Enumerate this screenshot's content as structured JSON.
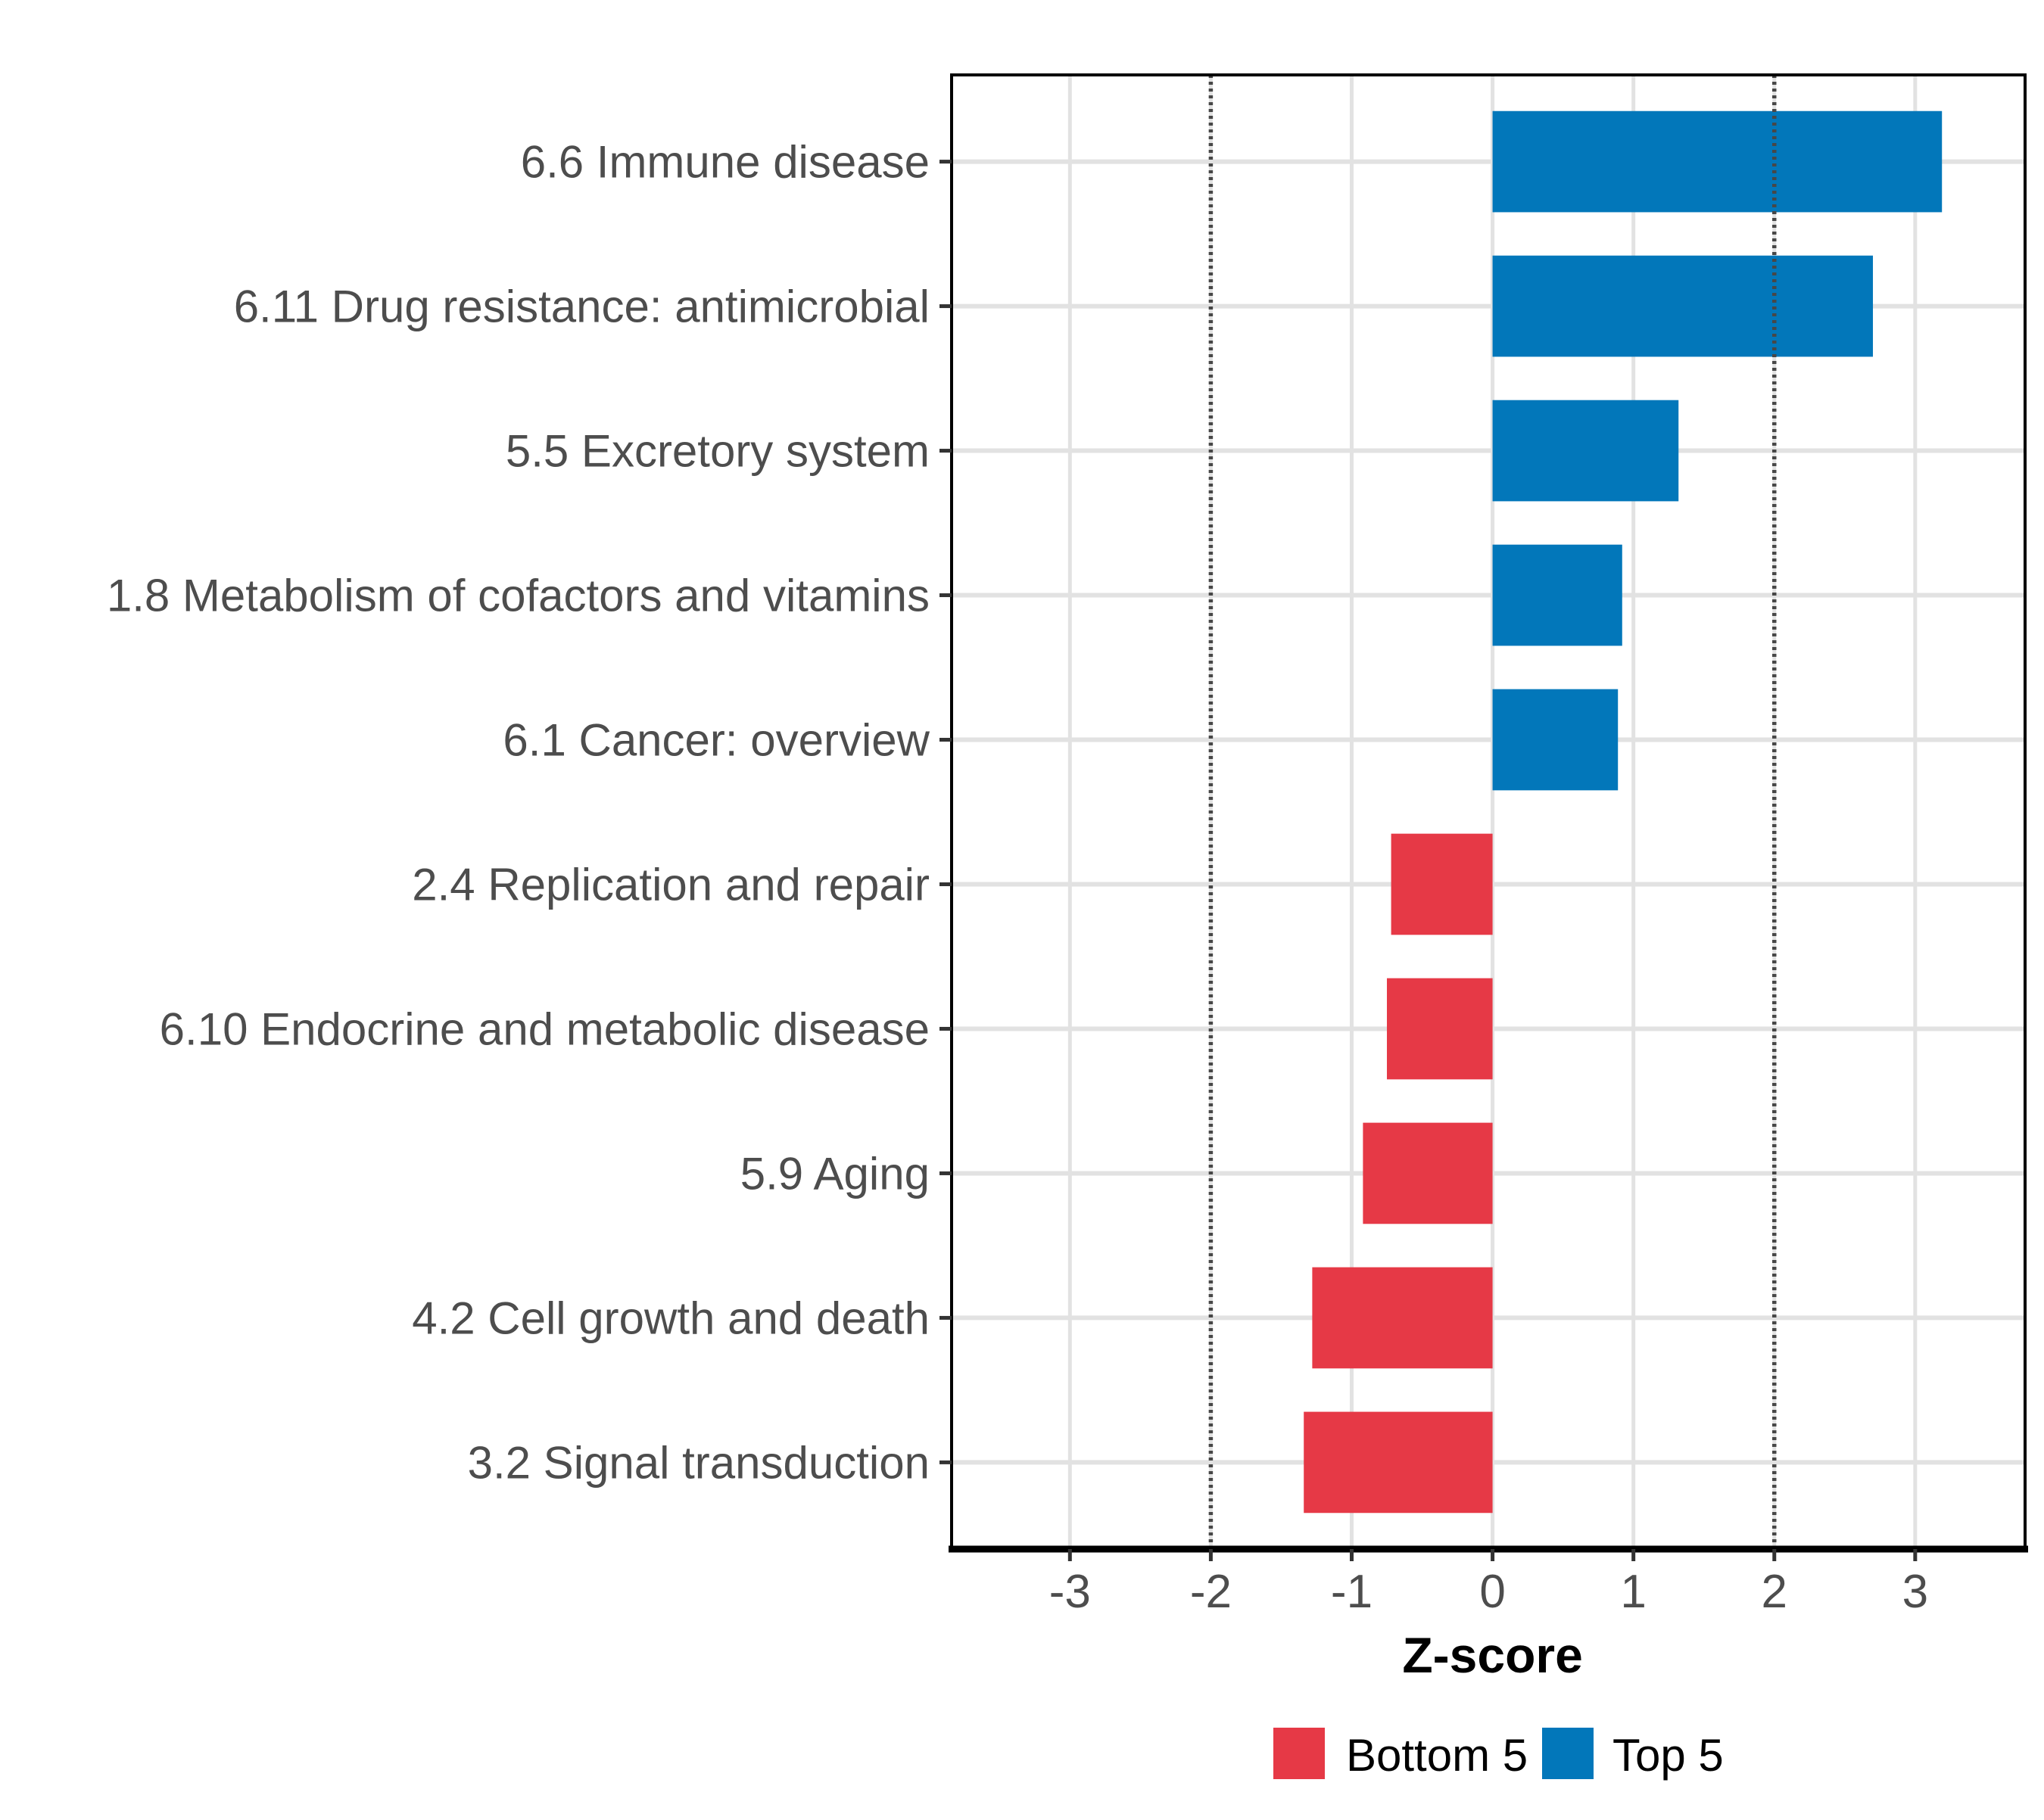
{
  "chart_data": {
    "type": "bar",
    "orientation": "horizontal",
    "title": "",
    "xlabel": "Z-score",
    "ylabel": "",
    "categories": [
      "6.6 Immune disease",
      "6.11 Drug resistance: antimicrobial",
      "5.5 Excretory system",
      "1.8 Metabolism of cofactors and vitamins",
      "6.1 Cancer: overview",
      "2.4 Replication and repair",
      "6.10 Endocrine and metabolic disease",
      "5.9 Aging",
      "4.2 Cell growth and death",
      "3.2 Signal transduction"
    ],
    "values": [
      3.19,
      2.7,
      1.32,
      0.92,
      0.89,
      -0.72,
      -0.75,
      -0.92,
      -1.28,
      -1.34
    ],
    "groups": [
      "Top 5",
      "Top 5",
      "Top 5",
      "Top 5",
      "Top 5",
      "Bottom 5",
      "Bottom 5",
      "Bottom 5",
      "Bottom 5",
      "Bottom 5"
    ],
    "series": [
      {
        "name": "Bottom 5",
        "color": "#E63946"
      },
      {
        "name": "Top 5",
        "color": "#0277BA"
      }
    ],
    "x_ticks": [
      -3,
      -2,
      -1,
      0,
      1,
      2,
      3
    ],
    "x_tick_labels": [
      "-3",
      "-2",
      "-1",
      "0",
      "1",
      "2",
      "3"
    ],
    "xlim": [
      -3.84,
      3.78
    ],
    "bar_width_fraction": 0.7,
    "reference_lines": {
      "values": [
        -2,
        2
      ],
      "style": "dotted",
      "color": "#474747"
    },
    "grid": {
      "show": true,
      "color": "#E2E2E2",
      "minor": false
    },
    "legend": {
      "position": "bottom",
      "entries": [
        {
          "label": "Bottom 5",
          "color": "#E63946"
        },
        {
          "label": "Top 5",
          "color": "#0277BA"
        }
      ]
    },
    "colors": {
      "axis_text": "#4D4D4D",
      "axis_title": "#000000",
      "legend_text": "#000000",
      "panel_border": "#000000",
      "panel_background": "#FFFFFF"
    }
  }
}
